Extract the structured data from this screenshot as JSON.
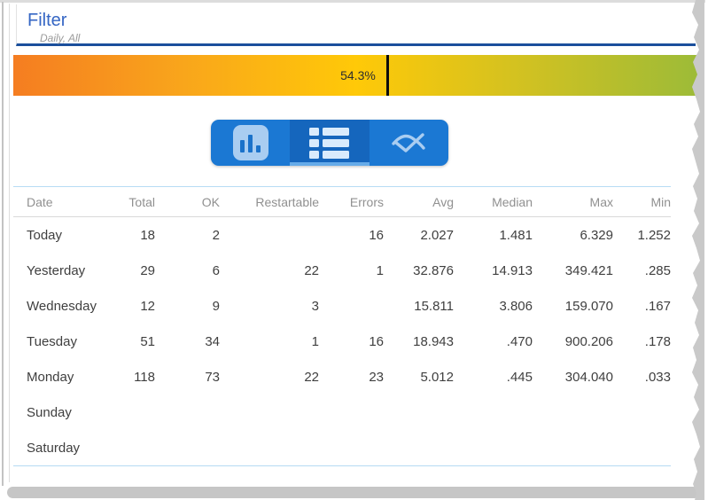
{
  "filter": {
    "title": "Filter",
    "subtitle": "Daily, All"
  },
  "progress": {
    "label": "54.3%",
    "value": 54.3,
    "gradient": [
      "#f57d21",
      "#f9a61b",
      "#ffc908",
      "#d0c122",
      "#9cbb38"
    ],
    "marker_color": "#0d0d0d"
  },
  "toolbar": {
    "bg": "#1b78d3",
    "selected_bg": "#1566bd",
    "underline_color": "#66abe9",
    "icon_color": "#a9cdf1",
    "buttons": [
      {
        "id": "bar-chart-view",
        "icon": "bar-chart-icon",
        "selected": false
      },
      {
        "id": "table-view",
        "icon": "table-icon",
        "selected": true
      },
      {
        "id": "line-chart-view",
        "icon": "line-chart-icon",
        "selected": false
      }
    ]
  },
  "table": {
    "columns": [
      {
        "label": "Date",
        "align": "left"
      },
      {
        "label": "Total",
        "align": "right"
      },
      {
        "label": "OK",
        "align": "right"
      },
      {
        "label": "Restartable",
        "align": "right"
      },
      {
        "label": "Errors",
        "align": "right"
      },
      {
        "label": "Avg",
        "align": "right"
      },
      {
        "label": "Median",
        "align": "right"
      },
      {
        "label": "Max",
        "align": "right"
      },
      {
        "label": "Min",
        "align": "right"
      }
    ],
    "rows": [
      {
        "cells": [
          "Today",
          "18",
          "2",
          "",
          "16",
          "2.027",
          "1.481",
          "6.329",
          "1.252"
        ]
      },
      {
        "cells": [
          "Yesterday",
          "29",
          "6",
          "22",
          "1",
          "32.876",
          "14.913",
          "349.421",
          ".285"
        ]
      },
      {
        "cells": [
          "Wednesday",
          "12",
          "9",
          "3",
          "",
          "15.811",
          "3.806",
          "159.070",
          ".167"
        ]
      },
      {
        "cells": [
          "Tuesday",
          "51",
          "34",
          "1",
          "16",
          "18.943",
          ".470",
          "900.206",
          ".178"
        ]
      },
      {
        "cells": [
          "Monday",
          "118",
          "73",
          "22",
          "23",
          "5.012",
          ".445",
          "304.040",
          ".033"
        ]
      },
      {
        "cells": [
          "Sunday",
          "",
          "",
          "",
          "",
          "",
          "",
          "",
          ""
        ]
      },
      {
        "cells": [
          "Saturday",
          "",
          "",
          "",
          "",
          "",
          "",
          "",
          ""
        ]
      }
    ]
  }
}
